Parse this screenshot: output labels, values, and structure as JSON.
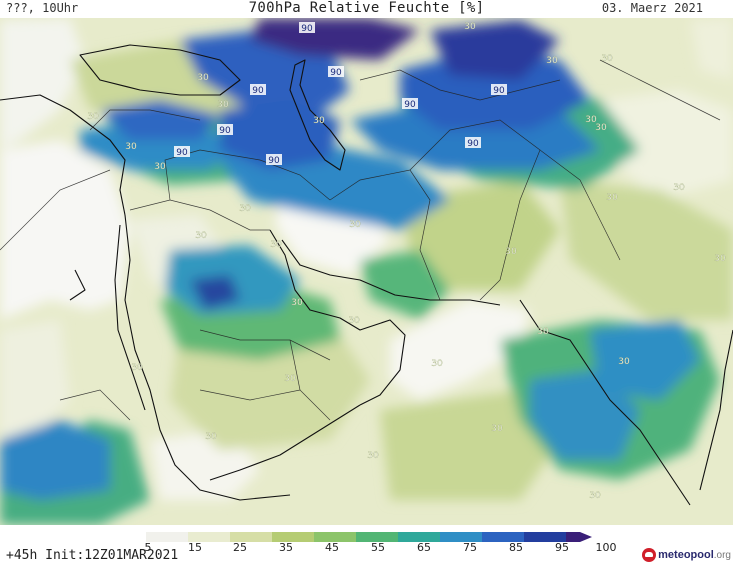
{
  "header": {
    "left_label": "???, 10Uhr",
    "title": "700hPa Relative Feuchte [%]",
    "date": "03. Maerz 2021"
  },
  "footer": {
    "init": "+45h  Init:12Z01MAR2021",
    "logo_name": "meteopool",
    "logo_tld": ".org"
  },
  "legend": {
    "labels": [
      "5",
      "15",
      "25",
      "35",
      "45",
      "55",
      "65",
      "75",
      "85",
      "95",
      "100"
    ],
    "colors": [
      "#ffffff",
      "#f1f1ec",
      "#e9ecd0",
      "#d6dea6",
      "#b5cc73",
      "#8cc46a",
      "#52b574",
      "#2fa89a",
      "#2f8ec5",
      "#2c63c0",
      "#233e9e",
      "#3a1f78"
    ]
  },
  "map_labels": [
    {
      "text": "90"
    },
    {
      "text": "90"
    },
    {
      "text": "90"
    },
    {
      "text": "90"
    },
    {
      "text": "90"
    },
    {
      "text": "90"
    },
    {
      "text": "90"
    },
    {
      "text": "90"
    },
    {
      "text": "90"
    },
    {
      "text": "30"
    },
    {
      "text": "30"
    },
    {
      "text": "30"
    },
    {
      "text": "30"
    },
    {
      "text": "30"
    },
    {
      "text": "30"
    },
    {
      "text": "30"
    },
    {
      "text": "30"
    },
    {
      "text": "30"
    },
    {
      "text": "30"
    },
    {
      "text": "30"
    },
    {
      "text": "30"
    },
    {
      "text": "30"
    },
    {
      "text": "30"
    },
    {
      "text": "30"
    },
    {
      "text": "30"
    },
    {
      "text": "30"
    },
    {
      "text": "30"
    },
    {
      "text": "30"
    },
    {
      "text": "30"
    },
    {
      "text": "30"
    },
    {
      "text": "30"
    },
    {
      "text": "30"
    },
    {
      "text": "30"
    },
    {
      "text": "30"
    },
    {
      "text": "30"
    },
    {
      "text": "30"
    },
    {
      "text": "30"
    },
    {
      "text": "30"
    },
    {
      "text": "30"
    }
  ]
}
